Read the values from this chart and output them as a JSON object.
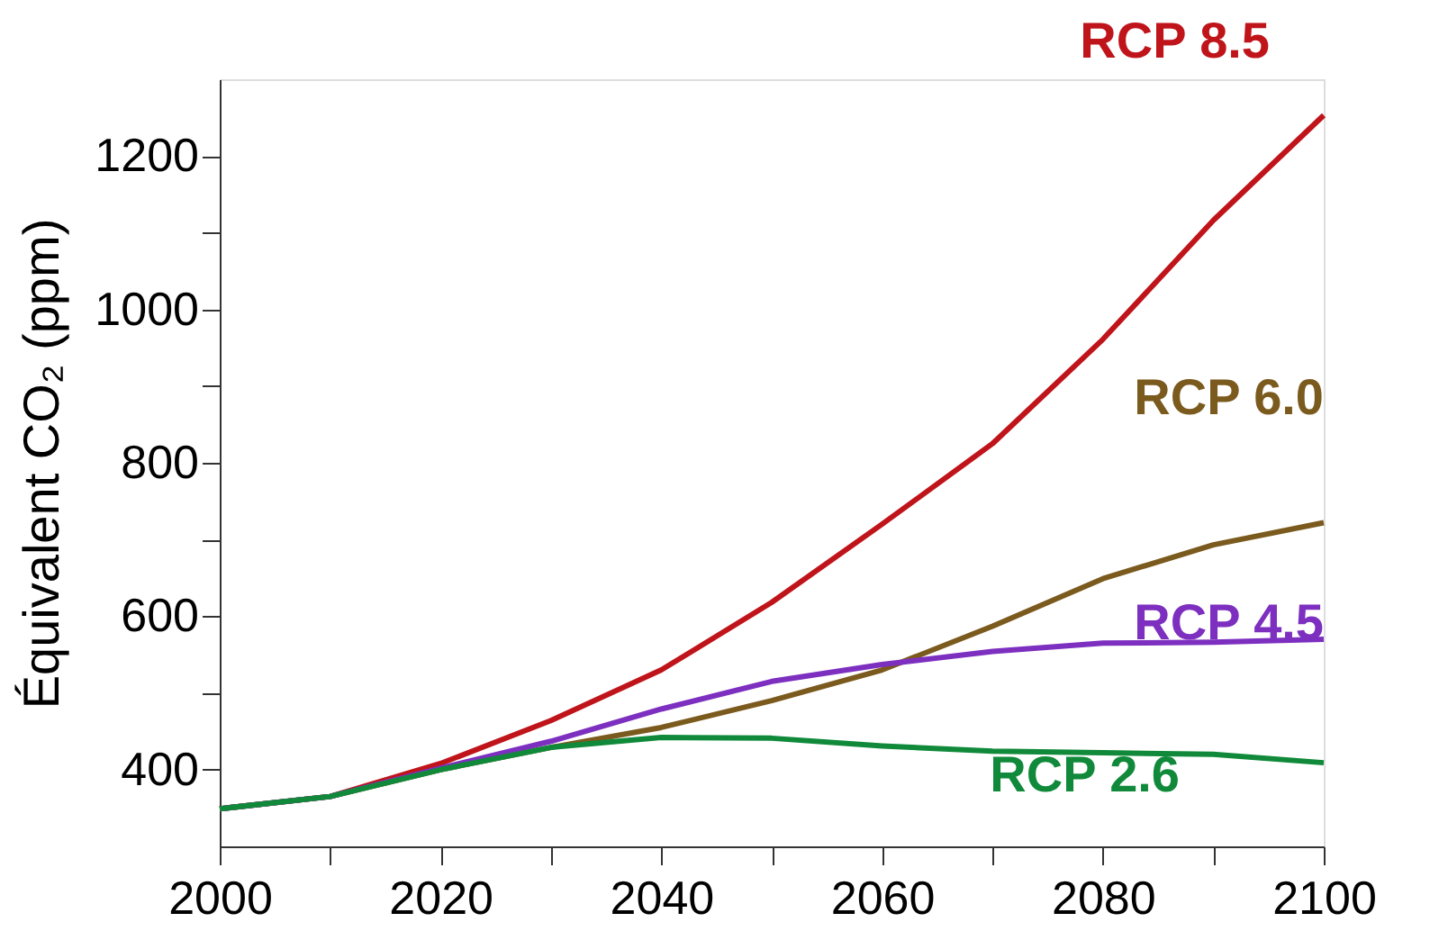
{
  "chart_data": {
    "type": "line",
    "ylabel": "Équivalent CO₂ (ppm)",
    "x": [
      2000,
      2010,
      2020,
      2030,
      2040,
      2050,
      2060,
      2070,
      2080,
      2090,
      2100
    ],
    "series": [
      {
        "name": "RCP 8.5",
        "color": "#c0141b",
        "values": [
          349,
          365,
          408,
          464,
          530,
          618,
          720,
          825,
          961,
          1116,
          1253
        ]
      },
      {
        "name": "RCP 6.0",
        "color": "#7b5a1e",
        "values": [
          349,
          365,
          400,
          429,
          455,
          490,
          530,
          587,
          649,
          693,
          722
        ]
      },
      {
        "name": "RCP 4.5",
        "color": "#7d2fc0",
        "values": [
          349,
          365,
          402,
          437,
          479,
          515,
          537,
          554,
          565,
          566,
          570
        ]
      },
      {
        "name": "RCP 2.6",
        "color": "#108a3a",
        "values": [
          349,
          365,
          400,
          429,
          442,
          441,
          431,
          424,
          422,
          420,
          409
        ]
      }
    ],
    "xlim": [
      2000,
      2100
    ],
    "xticks": [
      2000,
      {
        "value": 2010,
        "label": null
      },
      2020,
      {
        "value": 2030,
        "label": null
      },
      2040,
      {
        "value": 2050,
        "label": null
      },
      2060,
      {
        "value": 2070,
        "label": null
      },
      2080,
      {
        "value": 2090,
        "label": null
      },
      2100
    ],
    "ylim": [
      300,
      1300
    ],
    "yticks": [
      400,
      {
        "value": 500,
        "label": null
      },
      600,
      {
        "value": 700,
        "label": null
      },
      800,
      {
        "value": 900,
        "label": null
      },
      1000,
      {
        "value": 1100,
        "label": null
      },
      1200
    ],
    "grid": false,
    "legend": false,
    "line_style": "solid",
    "marker": "none"
  }
}
